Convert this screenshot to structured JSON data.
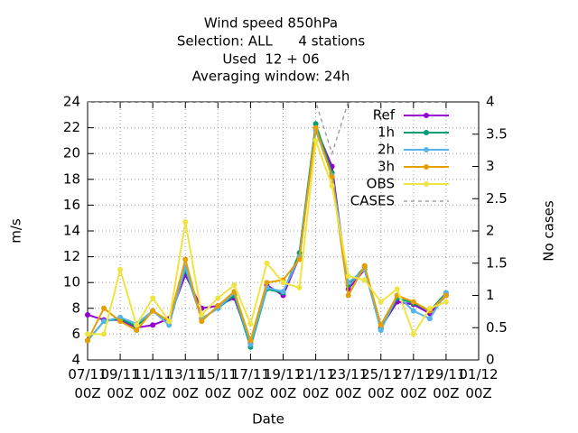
{
  "chart_data": {
    "type": "line",
    "title": [
      "Wind speed 850hPa",
      "Selection: ALL      4 stations",
      "Used  12 + 06",
      "Averaging window: 24h"
    ],
    "x_label": "Date",
    "y_label": "m/s",
    "y2_label": "No cases",
    "categories": [
      "07/11\n00Z",
      null,
      "09/11\n00Z",
      null,
      "11/11\n00Z",
      null,
      "13/11\n00Z",
      null,
      "15/11\n00Z",
      null,
      "17/11\n00Z",
      null,
      "19/11\n00Z",
      null,
      "21/11\n00Z",
      null,
      "23/11\n00Z",
      null,
      "25/11\n00Z",
      null,
      "27/11\n00Z",
      null,
      "29/11\n00Z",
      null,
      "01/12\n00Z"
    ],
    "ylim": [
      4,
      24
    ],
    "yticks": [
      4,
      6,
      8,
      10,
      12,
      14,
      16,
      18,
      20,
      22,
      24
    ],
    "y2lim": [
      0,
      4
    ],
    "y2ticks": [
      0,
      0.5,
      1,
      1.5,
      2,
      2.5,
      3,
      3.5,
      4
    ],
    "grid": true,
    "legend": "top-right",
    "series": [
      {
        "name": "Ref",
        "color": "#9400d3",
        "values": [
          7.5,
          7.1,
          7.1,
          6.5,
          6.7,
          7.2,
          10.6,
          8.0,
          8.2,
          8.8,
          5.3,
          9.8,
          9.0,
          12.0,
          22.0,
          19.0,
          9.5,
          11.0,
          6.5,
          8.5,
          8.3,
          7.6,
          9.0,
          null,
          null
        ]
      },
      {
        "name": "1h",
        "color": "#009e73",
        "values": [
          5.5,
          7.0,
          7.2,
          6.6,
          7.8,
          7.0,
          11.0,
          7.2,
          8.0,
          9.0,
          5.0,
          9.5,
          9.2,
          12.3,
          22.3,
          18.5,
          9.8,
          11.2,
          6.4,
          8.8,
          8.4,
          7.8,
          9.2,
          null,
          null
        ]
      },
      {
        "name": "2h",
        "color": "#56b4e9",
        "values": [
          5.5,
          7.0,
          7.3,
          6.8,
          7.8,
          6.7,
          11.2,
          7.2,
          8.0,
          9.2,
          5.2,
          9.6,
          9.3,
          12.0,
          21.8,
          18.3,
          10.0,
          11.0,
          6.3,
          9.0,
          7.8,
          7.2,
          9.2,
          null,
          null
        ]
      },
      {
        "name": "3h",
        "color": "#e69f00",
        "values": [
          5.5,
          8.0,
          7.0,
          6.3,
          7.8,
          7.0,
          11.8,
          7.0,
          8.2,
          9.3,
          5.5,
          10.0,
          10.2,
          11.8,
          22.0,
          18.2,
          9.0,
          11.3,
          6.7,
          9.0,
          8.5,
          7.8,
          9.0,
          null,
          null
        ]
      },
      {
        "name": "OBS",
        "color": "#f0e442",
        "values": [
          6.0,
          6.0,
          11.0,
          6.7,
          8.8,
          7.0,
          14.7,
          7.5,
          8.8,
          9.8,
          6.8,
          11.5,
          10.0,
          9.6,
          21.0,
          17.5,
          10.5,
          10.2,
          8.5,
          9.5,
          6.0,
          8.0,
          8.5,
          null,
          null
        ]
      },
      {
        "name": "CASES",
        "color": "#a0a0a0",
        "axis": "y2",
        "dashed": true,
        "values": [
          4,
          4,
          4,
          4,
          4,
          4,
          4,
          4,
          4,
          4,
          4,
          4,
          4,
          4,
          4,
          3.2,
          4,
          4,
          4,
          4,
          4,
          4,
          4,
          null,
          null
        ]
      }
    ]
  }
}
